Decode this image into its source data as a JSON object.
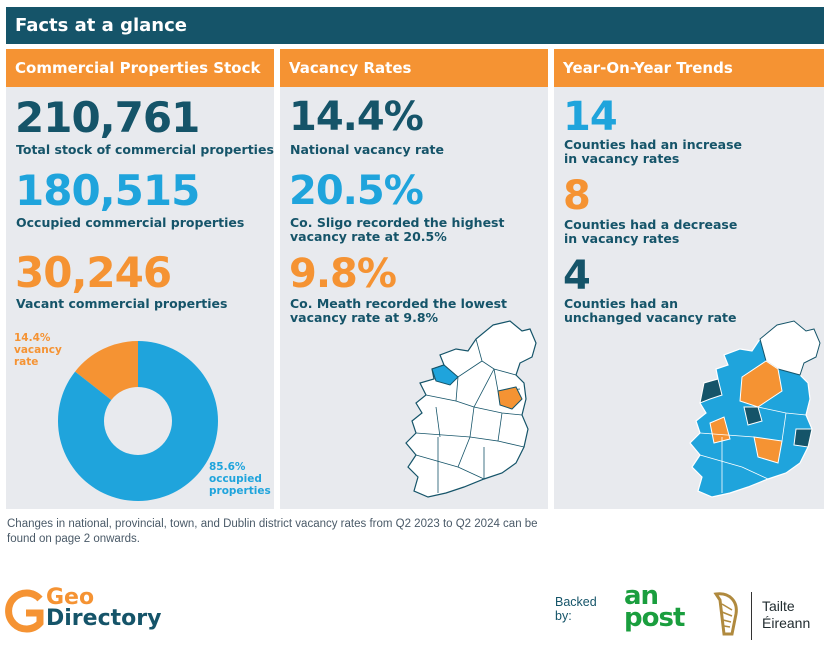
{
  "title": "Facts at a glance",
  "panels": {
    "stock": {
      "header": "Commercial Properties Stock",
      "total_value": "210,761",
      "total_label": "Total stock of commercial properties",
      "occupied_value": "180,515",
      "occupied_label": "Occupied commercial properties",
      "vacant_value": "30,246",
      "vacant_label": "Vacant commercial properties",
      "donut_vacant_label": "14.4%\nvacancy\nrate",
      "donut_occupied_label": "85.6%\noccupied\nproperties"
    },
    "vacancy": {
      "header": "Vacancy Rates",
      "national_value": "14.4%",
      "national_label": "National vacancy rate",
      "highest_value": "20.5%",
      "highest_label": "Co. Sligo recorded the highest vacancy rate at 20.5%",
      "lowest_value": "9.8%",
      "lowest_label": "Co. Meath recorded the lowest vacancy rate at 9.8%"
    },
    "trends": {
      "header": "Year-On-Year Trends",
      "increase_value": "14",
      "increase_label": "Counties had an increase in vacancy rates",
      "decrease_value": "8",
      "decrease_label": "Counties had a decrease in vacancy rates",
      "unchanged_value": "4",
      "unchanged_label": "Counties had an unchanged vacancy rate"
    }
  },
  "chart_data": {
    "type": "pie",
    "categories": [
      "vacancy rate",
      "occupied properties"
    ],
    "values": [
      14.4,
      85.6
    ],
    "colors": [
      "#f59333",
      "#1fa4dc"
    ]
  },
  "footnote": "Changes in national, provincial, town, and Dublin district vacancy rates from Q2 2023 to Q2 2024 can be found on page 2 onwards.",
  "footer": {
    "logo_geo": "Geo",
    "logo_directory": "Directory",
    "backed_by": "Backed by:",
    "an": "an",
    "post": "post",
    "tailte": "Tailte",
    "eireann": "Éireann"
  },
  "colors": {
    "navy": "#155469",
    "blue": "#1fa4dc",
    "orange": "#f59333",
    "panel_bg": "#e8eaee"
  }
}
